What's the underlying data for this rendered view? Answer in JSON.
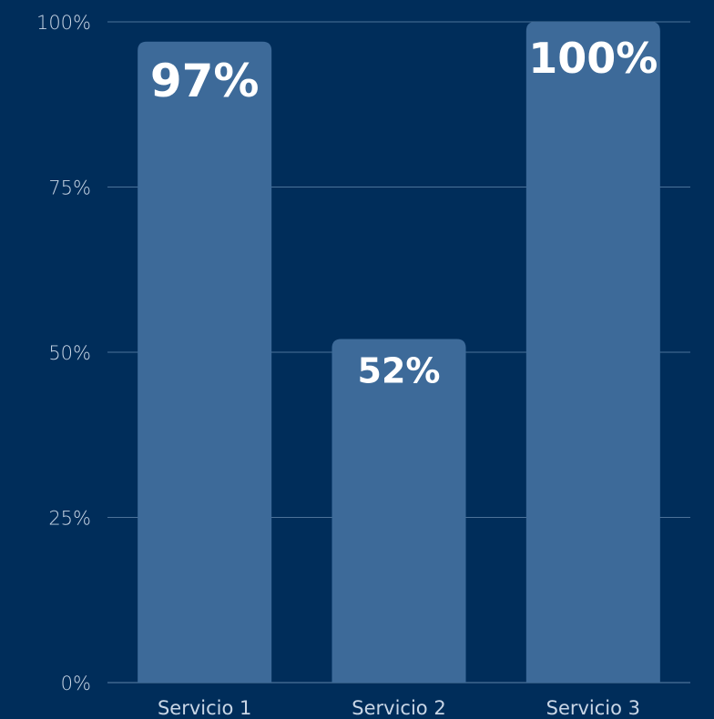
{
  "chart_data": {
    "type": "bar",
    "categories": [
      "Servicio 1",
      "Servicio 2",
      "Servicio 3"
    ],
    "values": [
      97,
      52,
      100
    ],
    "data_labels": [
      "97%",
      "52%",
      "100%"
    ],
    "ylim": [
      0,
      100
    ],
    "yticks": [
      0,
      25,
      50,
      75,
      100
    ],
    "ytick_labels": [
      "0%",
      "25%",
      "50%",
      "75%",
      "100%"
    ],
    "grid": true,
    "legend": "none",
    "title": "",
    "xlabel": "",
    "ylabel": ""
  },
  "colors": {
    "background": "#002d5a",
    "bar": "#3d6a99",
    "grid": "#4d7299",
    "axis_text": "#c9d6e6",
    "label_text": "#ffffff"
  }
}
